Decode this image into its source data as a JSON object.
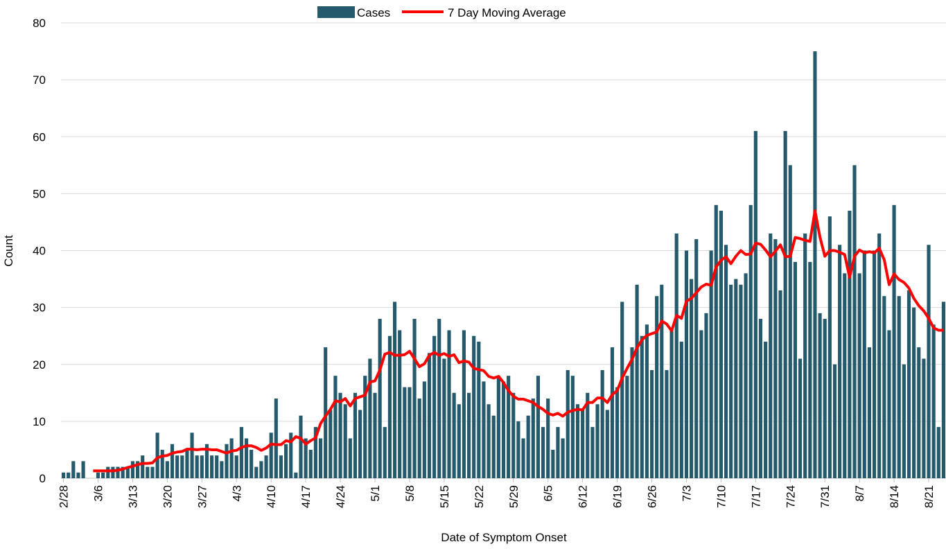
{
  "chart_data": {
    "type": "bar",
    "x_label": "Date of Symptom Onset",
    "y_label": "Count",
    "ylim": [
      0,
      80
    ],
    "yticks": [
      0,
      10,
      20,
      30,
      40,
      50,
      60,
      70,
      80
    ],
    "grid": true,
    "categories": [
      "2/28",
      null,
      null,
      null,
      null,
      null,
      null,
      "3/6",
      null,
      null,
      null,
      null,
      null,
      null,
      "3/13",
      null,
      null,
      null,
      null,
      null,
      null,
      "3/20",
      null,
      null,
      null,
      null,
      null,
      null,
      "3/27",
      null,
      null,
      null,
      null,
      null,
      null,
      "4/3",
      null,
      null,
      null,
      null,
      null,
      null,
      "4/10",
      null,
      null,
      null,
      null,
      null,
      null,
      "4/17",
      null,
      null,
      null,
      null,
      null,
      null,
      "4/24",
      null,
      null,
      null,
      null,
      null,
      null,
      "5/1",
      null,
      null,
      null,
      null,
      null,
      null,
      "5/8",
      null,
      null,
      null,
      null,
      null,
      null,
      "5/15",
      null,
      null,
      null,
      null,
      null,
      null,
      "5/22",
      null,
      null,
      null,
      null,
      null,
      null,
      "5/29",
      null,
      null,
      null,
      null,
      null,
      null,
      "6/5",
      null,
      null,
      null,
      null,
      null,
      null,
      "6/12",
      null,
      null,
      null,
      null,
      null,
      null,
      "6/19",
      null,
      null,
      null,
      null,
      null,
      null,
      "6/26",
      null,
      null,
      null,
      null,
      null,
      null,
      "7/3",
      null,
      null,
      null,
      null,
      null,
      null,
      "7/10",
      null,
      null,
      null,
      null,
      null,
      null,
      "7/17",
      null,
      null,
      null,
      null,
      null,
      null,
      "7/24",
      null,
      null,
      null,
      null,
      null,
      null,
      "7/31",
      null,
      null,
      null,
      null,
      null,
      null,
      "8/7",
      null,
      null,
      null,
      null,
      null,
      null,
      "8/14",
      null,
      null,
      null,
      null,
      null,
      null,
      "8/21",
      null,
      null,
      null
    ],
    "series": [
      {
        "name": "Cases",
        "type": "bar",
        "color": "#245a6b",
        "values": [
          1,
          1,
          3,
          1,
          3,
          0,
          0,
          1,
          1,
          2,
          2,
          2,
          2,
          2,
          3,
          3,
          4,
          2,
          2,
          8,
          5,
          3,
          6,
          4,
          4,
          5,
          8,
          4,
          4,
          6,
          4,
          4,
          3,
          6,
          7,
          4,
          9,
          7,
          5,
          2,
          3,
          4,
          8,
          14,
          4,
          6,
          8,
          1,
          11,
          7,
          5,
          9,
          7,
          23,
          12,
          18,
          15,
          13,
          7,
          15,
          12,
          18,
          21,
          15,
          28,
          9,
          25,
          31,
          26,
          16,
          16,
          28,
          14,
          17,
          22,
          25,
          28,
          21,
          26,
          15,
          13,
          26,
          15,
          25,
          24,
          17,
          13,
          11,
          18,
          17,
          18,
          15,
          10,
          7,
          11,
          14,
          18,
          9,
          14,
          5,
          9,
          7,
          19,
          18,
          13,
          12,
          15,
          9,
          13,
          19,
          12,
          23,
          16,
          31,
          18,
          23,
          34,
          25,
          27,
          19,
          32,
          34,
          19,
          26,
          43,
          24,
          40,
          35,
          42,
          26,
          29,
          40,
          48,
          47,
          41,
          34,
          35,
          34,
          36,
          48,
          61,
          28,
          24,
          43,
          42,
          33,
          61,
          55,
          38,
          21,
          43,
          38,
          75,
          29,
          28,
          46,
          20,
          41,
          36,
          47,
          55,
          36,
          40,
          23,
          40,
          43,
          32,
          26,
          48,
          32,
          20,
          33,
          30,
          23,
          21,
          41,
          27,
          9,
          31
        ]
      },
      {
        "name": "7 Day Moving Average",
        "type": "line",
        "color": "#ff0000",
        "values": [
          null,
          null,
          null,
          null,
          null,
          null,
          1.3,
          1.3,
          1.3,
          1.3,
          1.3,
          1.4,
          1.6,
          1.9,
          2.1,
          2.4,
          2.6,
          2.6,
          2.7,
          3.6,
          3.9,
          4.0,
          4.4,
          4.6,
          4.7,
          5.1,
          5.1,
          5.0,
          5.1,
          5.1,
          5.0,
          5.0,
          4.7,
          4.4,
          4.8,
          4.9,
          5.4,
          5.7,
          5.7,
          5.4,
          4.9,
          5.3,
          6.0,
          5.9,
          5.9,
          6.6,
          6.4,
          7.3,
          7.0,
          6.0,
          6.6,
          7.1,
          9.6,
          10.9,
          12.1,
          13.6,
          13.4,
          14.0,
          12.7,
          14.0,
          14.3,
          14.6,
          16.9,
          17.1,
          19.0,
          21.8,
          22.1,
          21.6,
          21.6,
          21.7,
          22.3,
          21.0,
          19.6,
          20.1,
          21.6,
          22.1,
          21.6,
          21.9,
          21.4,
          21.7,
          20.3,
          20.6,
          20.4,
          19.3,
          19.1,
          18.9,
          17.9,
          17.6,
          17.9,
          16.8,
          15.4,
          14.4,
          13.9,
          13.9,
          13.6,
          13.3,
          12.6,
          12.1,
          11.4,
          11.1,
          11.4,
          10.9,
          11.6,
          11.9,
          12.1,
          12.0,
          13.3,
          13.3,
          14.1,
          14.1,
          13.3,
          14.7,
          15.4,
          17.6,
          19.3,
          20.9,
          22.9,
          24.3,
          25.1,
          25.4,
          25.7,
          27.6,
          27.1,
          25.9,
          28.6,
          28.1,
          31.1,
          31.6,
          32.6,
          33.6,
          34.1,
          33.9,
          37.1,
          38.3,
          38.9,
          37.7,
          39.0,
          40.0,
          39.3,
          39.4,
          41.3,
          41.1,
          40.1,
          38.9,
          39.9,
          41.0,
          38.9,
          39.0,
          42.3,
          42.1,
          41.8,
          41.6,
          47.0,
          42.4,
          39.0,
          40.0,
          40.0,
          39.7,
          39.3,
          35.3,
          39.0,
          40.1,
          39.6,
          39.8,
          39.6,
          40.4,
          38.4,
          34.0,
          35.9,
          34.9,
          34.4,
          33.4,
          31.6,
          30.3,
          29.4,
          28.1,
          26.4,
          26.0,
          26.0
        ]
      }
    ]
  }
}
